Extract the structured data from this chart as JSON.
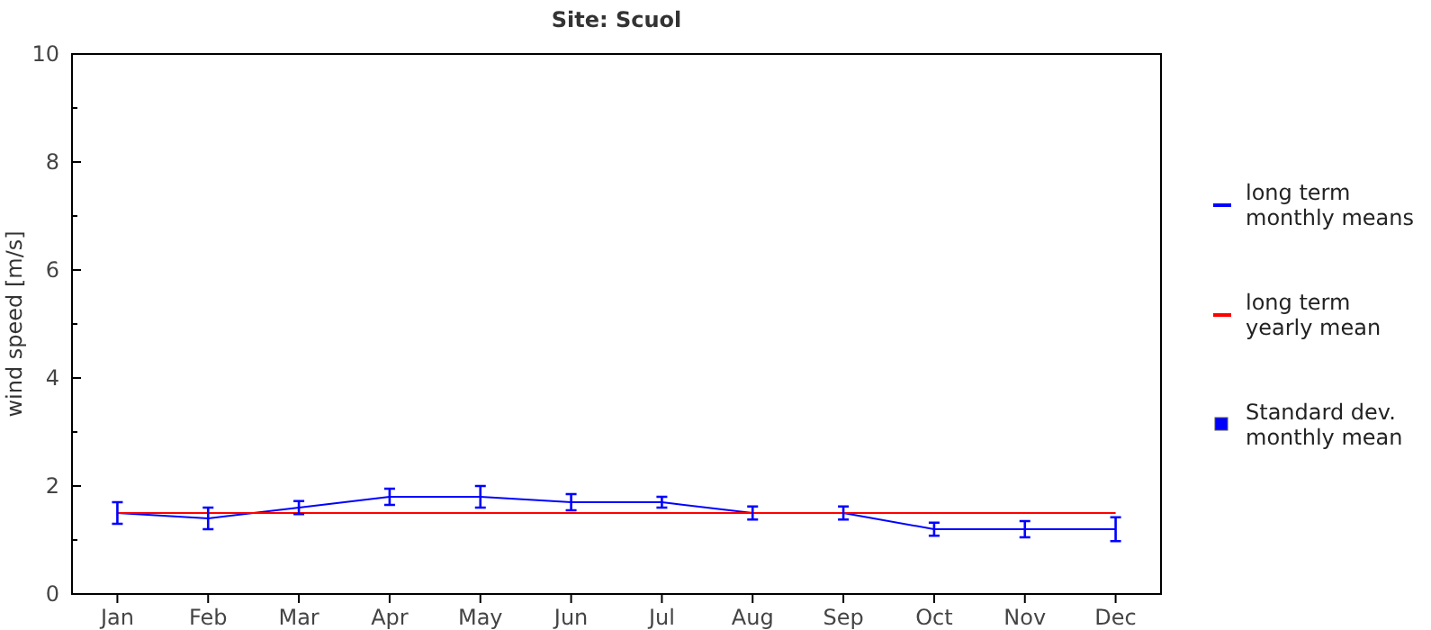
{
  "chart_data": {
    "type": "line",
    "title": "Site: Scuol",
    "ylabel": "wind speed [m/s]",
    "categories": [
      "Jan",
      "Feb",
      "Mar",
      "Apr",
      "May",
      "Jun",
      "Jul",
      "Aug",
      "Sep",
      "Oct",
      "Nov",
      "Dec"
    ],
    "series": [
      {
        "name": "long term monthly means",
        "color": "#0000ff",
        "values": [
          1.5,
          1.4,
          1.6,
          1.8,
          1.8,
          1.7,
          1.7,
          1.5,
          1.5,
          1.2,
          1.2,
          1.2
        ],
        "errors": [
          0.2,
          0.2,
          0.12,
          0.15,
          0.2,
          0.15,
          0.1,
          0.12,
          0.12,
          0.12,
          0.15,
          0.22
        ]
      },
      {
        "name": "long term yearly mean",
        "color": "#ff0000",
        "values": [
          1.5,
          1.5,
          1.5,
          1.5,
          1.5,
          1.5,
          1.5,
          1.5,
          1.5,
          1.5,
          1.5,
          1.5
        ]
      }
    ],
    "annotations": [
      "Standard dev.\nmonthly mean"
    ],
    "ylim": [
      0,
      10
    ],
    "yticks": [
      0,
      {
        "value": 1,
        "label": null
      },
      2,
      {
        "value": 3,
        "label": null
      },
      4,
      {
        "value": 5,
        "label": null
      },
      6,
      {
        "value": 7,
        "label": null
      },
      8,
      {
        "value": 9,
        "label": null
      },
      10
    ],
    "grid": false,
    "legend": "right",
    "line_style": "solid"
  }
}
